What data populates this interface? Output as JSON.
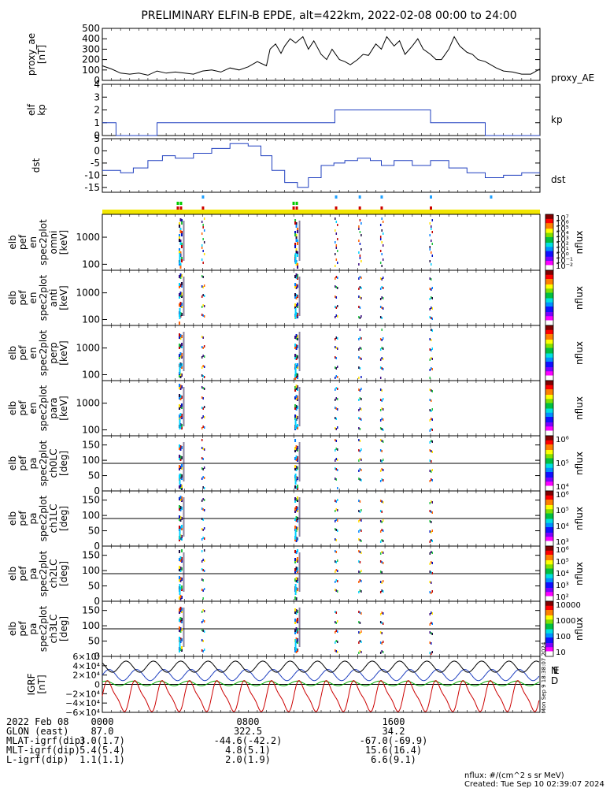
{
  "title": "PRELIMINARY ELFIN-B EPDE, alt=422km, 2022-02-08 00:00 to 24:00",
  "chart_data": [
    {
      "type": "line",
      "panel": "proxy_ae",
      "ylabel": "proxy_ae [nT]",
      "series": [
        {
          "name": "proxy_AE",
          "color": "#000000",
          "x": [
            0,
            0.5,
            1,
            1.5,
            2,
            2.5,
            3,
            3.5,
            4,
            4.5,
            5,
            5.5,
            6,
            6.5,
            7,
            7.5,
            8,
            8.5,
            9,
            9.2,
            9.5,
            9.8,
            10,
            10.3,
            10.6,
            11,
            11.3,
            11.6,
            12,
            12.3,
            12.6,
            13,
            13.3,
            13.6,
            14,
            14.3,
            14.6,
            15,
            15.3,
            15.6,
            16,
            16.3,
            16.6,
            17,
            17.3,
            17.6,
            18,
            18.3,
            18.6,
            19,
            19.3,
            19.6,
            20,
            20.3,
            20.6,
            21,
            21.3,
            21.6,
            22,
            22.5,
            23,
            23.5,
            24
          ],
          "values": [
            140,
            110,
            70,
            60,
            70,
            50,
            90,
            70,
            80,
            70,
            60,
            90,
            100,
            80,
            120,
            100,
            130,
            180,
            140,
            300,
            350,
            260,
            330,
            400,
            360,
            420,
            300,
            380,
            250,
            200,
            300,
            200,
            180,
            150,
            200,
            250,
            240,
            350,
            300,
            420,
            330,
            380,
            250,
            330,
            400,
            300,
            250,
            200,
            200,
            300,
            420,
            330,
            270,
            250,
            200,
            180,
            150,
            120,
            90,
            80,
            60,
            60,
            110
          ]
        }
      ],
      "ylim": [
        0,
        500
      ],
      "yticks": [
        0,
        100,
        200,
        300,
        400,
        500
      ]
    },
    {
      "type": "line",
      "panel": "elf kp",
      "ylabel": "elf kp",
      "series": [
        {
          "name": "kp",
          "color": "#1f3fbf",
          "x": [
            0,
            0.75,
            0.75,
            3,
            3,
            12,
            12,
            12.75,
            12.75,
            15,
            15,
            18,
            18,
            21,
            21,
            22,
            22,
            24
          ],
          "values": [
            1,
            1,
            0,
            0,
            1,
            1,
            1,
            1,
            2,
            2,
            2,
            2,
            1,
            1,
            0,
            0,
            0,
            0
          ]
        }
      ],
      "ylim": [
        0,
        4
      ],
      "yticks": [
        0,
        1,
        2,
        3,
        4
      ]
    },
    {
      "type": "line",
      "panel": "dst",
      "ylabel": "dst",
      "series": [
        {
          "name": "dst",
          "color": "#1f3fbf",
          "x": [
            0,
            1,
            1,
            1.7,
            1.7,
            2.5,
            2.5,
            3.3,
            3.3,
            4,
            4,
            5,
            5,
            6,
            6,
            7,
            7,
            8,
            8,
            8.7,
            8.7,
            9.3,
            9.3,
            10,
            10,
            10.7,
            10.7,
            11.3,
            11.3,
            12,
            12,
            12.7,
            12.7,
            13.3,
            13.3,
            14,
            14,
            14.7,
            14.7,
            15.3,
            15.3,
            16,
            16,
            17,
            17,
            18,
            18,
            19,
            19,
            20,
            20,
            21,
            21,
            22,
            22,
            23,
            23,
            24
          ],
          "values": [
            -8,
            -8,
            -9,
            -9,
            -7,
            -7,
            -4,
            -4,
            -2,
            -2,
            -3,
            -3,
            -1,
            -1,
            1,
            1,
            3,
            3,
            2,
            2,
            -2,
            -2,
            -8,
            -8,
            -13,
            -13,
            -15,
            -15,
            -11,
            -11,
            -6,
            -6,
            -5,
            -5,
            -4,
            -4,
            -3,
            -3,
            -4,
            -4,
            -6,
            -6,
            -4,
            -4,
            -6,
            -6,
            -4,
            -4,
            -7,
            -7,
            -9,
            -9,
            -11,
            -11,
            -10,
            -10,
            -9,
            -9
          ]
        }
      ],
      "ylim": [
        -17,
        5
      ],
      "yticks": [
        -15,
        -10,
        -5,
        0,
        5
      ]
    },
    {
      "type": "heatmap",
      "panel": "elb pef en spec2plot omni",
      "ylabel": "elb pef en spec2plot omni [keV]",
      "ylim": [
        60,
        7000
      ],
      "yscale": "log",
      "yticks": [
        100,
        1000
      ],
      "colorbar": {
        "label": "nflux",
        "range": [
          10,
          10000000
        ],
        "ticklabels": [
          "10⁷",
          "10⁶",
          "10⁵",
          "10⁴",
          "10³",
          "10²",
          "10¹",
          "10⁰",
          "10⁻¹",
          "10⁻²"
        ]
      },
      "passes_hours": [
        4.25,
        5.5,
        10.6,
        12.8,
        14.1,
        15.3,
        18.0
      ]
    },
    {
      "type": "heatmap",
      "panel": "elb pef en spec2plot anti",
      "ylabel": "elb pef en spec2plot anti [keV]",
      "ylim": [
        60,
        7000
      ],
      "yscale": "log",
      "yticks": [
        100,
        1000
      ],
      "colorbar": {
        "label": "nflux",
        "range": [
          10,
          10000000
        ]
      },
      "passes_hours": [
        4.25,
        5.5,
        10.6,
        12.8,
        14.1,
        15.3,
        18.0
      ]
    },
    {
      "type": "heatmap",
      "panel": "elb pef en spec2plot perp",
      "ylabel": "elb pef en spec2plot perp [keV]",
      "ylim": [
        60,
        7000
      ],
      "yscale": "log",
      "yticks": [
        100,
        1000
      ],
      "colorbar": {
        "label": "nflux",
        "range": [
          10,
          10000000
        ]
      },
      "passes_hours": [
        4.25,
        5.5,
        10.6,
        12.8,
        14.1,
        15.3,
        18.0
      ]
    },
    {
      "type": "heatmap",
      "panel": "elb pef en spec2plot para",
      "ylabel": "elb pef en spec2plot para [keV]",
      "ylim": [
        60,
        7000
      ],
      "yscale": "log",
      "yticks": [
        100,
        1000
      ],
      "colorbar": {
        "label": "nflux",
        "range": [
          10,
          10000000
        ]
      },
      "passes_hours": [
        4.25,
        5.5,
        10.6,
        12.8,
        14.1,
        15.3,
        18.0
      ]
    },
    {
      "type": "heatmap",
      "panel": "elb pef pa spec2plot ch0LC",
      "ylabel": "elb pef pa spec2plot ch0LC [deg]",
      "ylim": [
        0,
        180
      ],
      "yticks": [
        0,
        50,
        100,
        150
      ],
      "colorbar": {
        "label": "nflux",
        "ticks": [
          "10⁶",
          "10⁵",
          "10⁴"
        ]
      },
      "passes_hours": [
        4.25,
        5.5,
        10.6,
        12.8,
        14.1,
        15.3,
        18.0
      ]
    },
    {
      "type": "heatmap",
      "panel": "elb pef pa spec2plot ch1LC",
      "ylabel": "elb pef pa spec2plot ch1LC [deg]",
      "ylim": [
        0,
        180
      ],
      "yticks": [
        0,
        50,
        100,
        150
      ],
      "colorbar": {
        "label": "nflux",
        "ticks": [
          "10⁶",
          "10⁵",
          "10⁴",
          "10³"
        ]
      },
      "passes_hours": [
        4.25,
        5.5,
        10.6,
        12.8,
        14.1,
        15.3,
        18.0
      ]
    },
    {
      "type": "heatmap",
      "panel": "elb pef pa spec2plot ch2LC",
      "ylabel": "elb pef pa spec2plot ch2LC [deg]",
      "ylim": [
        0,
        180
      ],
      "yticks": [
        0,
        50,
        100,
        150
      ],
      "colorbar": {
        "label": "nflux",
        "ticks": [
          "10⁶",
          "10⁵",
          "10⁴",
          "10³",
          "10²"
        ]
      },
      "passes_hours": [
        4.25,
        5.5,
        10.6,
        12.8,
        14.1,
        15.3,
        18.0
      ]
    },
    {
      "type": "heatmap",
      "panel": "elb pef pa spec2plot ch3LC",
      "ylabel": "elb pef pa spec2plot ch3LC [deg]",
      "ylim": [
        0,
        180
      ],
      "yticks": [
        0,
        50,
        100,
        150
      ],
      "colorbar": {
        "label": "nflux",
        "ticks": [
          "10000",
          "1000",
          "100",
          "10"
        ]
      },
      "passes_hours": [
        4.25,
        5.5,
        10.6,
        12.8,
        14.1,
        15.3,
        18.0
      ]
    },
    {
      "type": "line",
      "panel": "IGRF",
      "ylabel": "IGRF [nT]",
      "ylim": [
        -60000,
        60000
      ],
      "yticks": [
        "6×10⁴",
        "4×10⁴",
        "2×10⁴",
        "0",
        "−2×10⁴",
        "−4×10⁴",
        "−6×10⁴"
      ],
      "series": [
        {
          "name": "N",
          "color": "#1f3fbf",
          "mean": 20000,
          "amplitude": 12000
        },
        {
          "name": "E",
          "color": "#00aa00",
          "mean": 2000,
          "amplitude": 5000
        },
        {
          "name": "D",
          "color": "#cc0000",
          "mean": -25000,
          "amplitude": 30000
        },
        {
          "name": "total",
          "color": "#000000",
          "mean": 38000,
          "amplitude": 12000
        }
      ],
      "orbit_period_hours": 1.5
    }
  ],
  "side_labels": {
    "proxy_ae": "proxy_AE",
    "kp": "kp",
    "dst": "dst",
    "nflux": "nflux",
    "grf_n": "N",
    "grf_e": "E",
    "grf_d": "D"
  },
  "left_labels": {
    "proxy": [
      "proxy_ae",
      "[nT]"
    ],
    "kp": [
      "elf",
      "kp"
    ],
    "dst": [
      "dst"
    ],
    "omni": [
      "elb",
      "pef",
      "en",
      "spec2plot",
      "omni",
      "[keV]"
    ],
    "anti": [
      "elb",
      "pef",
      "en",
      "spec2plot",
      "anti",
      "[keV]"
    ],
    "perp": [
      "elb",
      "pef",
      "en",
      "spec2plot",
      "perp",
      "[keV]"
    ],
    "para": [
      "elb",
      "pef",
      "en",
      "spec2plot",
      "para",
      "[keV]"
    ],
    "ch0": [
      "elb",
      "pef",
      "pa",
      "spec2plot",
      "ch0LC",
      "[deg]"
    ],
    "ch1": [
      "elb",
      "pef",
      "pa",
      "spec2plot",
      "ch1LC",
      "[deg]"
    ],
    "ch2": [
      "elb",
      "pef",
      "pa",
      "spec2plot",
      "ch2LC",
      "[deg]"
    ],
    "ch3": [
      "elb",
      "pef",
      "pa",
      "spec2plot",
      "ch3LC",
      "[deg]"
    ],
    "grf": [
      "IGRF",
      "[nT]"
    ]
  },
  "orbit_table": {
    "rows": [
      {
        "label": "2022 Feb 08",
        "v0": "0000",
        "v1": "0800",
        "v2": "1600"
      },
      {
        "label": "GLON (east)",
        "v0": "87.0",
        "v1": "322.5",
        "v2": "34.2"
      },
      {
        "label": "MLAT-igrf(dip)",
        "v0": "3.0(1.7)",
        "v1": "-44.6(-42.2)",
        "v2": "-67.0(-69.9)"
      },
      {
        "label": "MLT-igrf(dip)",
        "v0": "5.4(5.4)",
        "v1": "4.8(5.1)",
        "v2": "15.6(16.4)"
      },
      {
        "label": "L-igrf(dip)",
        "v0": "1.1(1.1)",
        "v1": "2.0(1.9)",
        "v2": "6.6(9.1)"
      }
    ]
  },
  "footer": {
    "units": "nflux: #/(cm^2 s sr MeV)",
    "created": "Created: Tue Sep 10 02:39:07 2024"
  },
  "side_stamp": "Mon Sep 9 18:38:07 2024"
}
